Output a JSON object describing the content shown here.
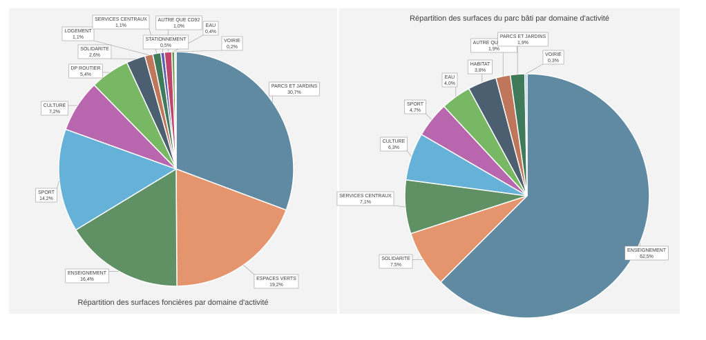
{
  "chart_data": [
    {
      "type": "pie",
      "title": "Répartition des surfaces foncières par domaine d'activité",
      "slices": [
        {
          "label": "PARCS ET JARDINS",
          "value_label": "30,7%",
          "value": 30.7,
          "color": "#5f8aa1"
        },
        {
          "label": "ESPACES VERTS",
          "value_label": "19,2%",
          "value": 19.2,
          "color": "#e4956d"
        },
        {
          "label": "ENSEIGNEMENT",
          "value_label": "16,4%",
          "value": 16.4,
          "color": "#5f9165"
        },
        {
          "label": "SPORT",
          "value_label": "14,2%",
          "value": 14.2,
          "color": "#66b1d7"
        },
        {
          "label": "CULTURE",
          "value_label": "7,2%",
          "value": 7.2,
          "color": "#b866ae"
        },
        {
          "label": "DP ROUTIER",
          "value_label": "5,4%",
          "value": 5.4,
          "color": "#78b865"
        },
        {
          "label": "SOLIDARITE",
          "value_label": "2,6%",
          "value": 2.6,
          "color": "#4c5f70"
        },
        {
          "label": "LOGEMENT",
          "value_label": "1,1%",
          "value": 1.1,
          "color": "#c0765a"
        },
        {
          "label": "SERVICES CENTRAUX",
          "value_label": "1,1%",
          "value": 1.1,
          "color": "#3f7a5a"
        },
        {
          "label": "STATIONNEMENT",
          "value_label": "0,5%",
          "value": 0.5,
          "color": "#5b5fae"
        },
        {
          "label": "AUTRE QUE CD92",
          "value_label": "1,0%",
          "value": 1.0,
          "color": "#c0456a"
        },
        {
          "label": "EAU",
          "value_label": "0,4%",
          "value": 0.4,
          "color": "#6a9a4a"
        },
        {
          "label": "VOIRIE",
          "value_label": "0,2%",
          "value": 0.2,
          "color": "#a0c8e0"
        }
      ]
    },
    {
      "type": "pie",
      "title": "Répartition des surfaces du parc bâti par domaine d'activité",
      "slices": [
        {
          "label": "ENSEIGNEMENT",
          "value_label": "62,5%",
          "value": 62.5,
          "color": "#5f8aa1"
        },
        {
          "label": "SOLIDARITE",
          "value_label": "7,5%",
          "value": 7.5,
          "color": "#e4956d"
        },
        {
          "label": "SERVICES CENTRAUX",
          "value_label": "7,1%",
          "value": 7.1,
          "color": "#5f9165"
        },
        {
          "label": "CULTURE",
          "value_label": "6,3%",
          "value": 6.3,
          "color": "#66b1d7"
        },
        {
          "label": "SPORT",
          "value_label": "4,7%",
          "value": 4.7,
          "color": "#b866ae"
        },
        {
          "label": "EAU",
          "value_label": "4,0%",
          "value": 4.0,
          "color": "#78b865"
        },
        {
          "label": "HABITAT",
          "value_label": "3,8%",
          "value": 3.8,
          "color": "#4c5f70"
        },
        {
          "label": "AUTRE QUE CD92",
          "value_label": "1,9%",
          "value": 1.9,
          "color": "#c0765a"
        },
        {
          "label": "PARCS ET JARDINS",
          "value_label": "1,9%",
          "value": 1.9,
          "color": "#3f7a5a"
        },
        {
          "label": "VOIRIE",
          "value_label": "0,3%",
          "value": 0.3,
          "color": "#a0c8e0"
        }
      ]
    }
  ]
}
